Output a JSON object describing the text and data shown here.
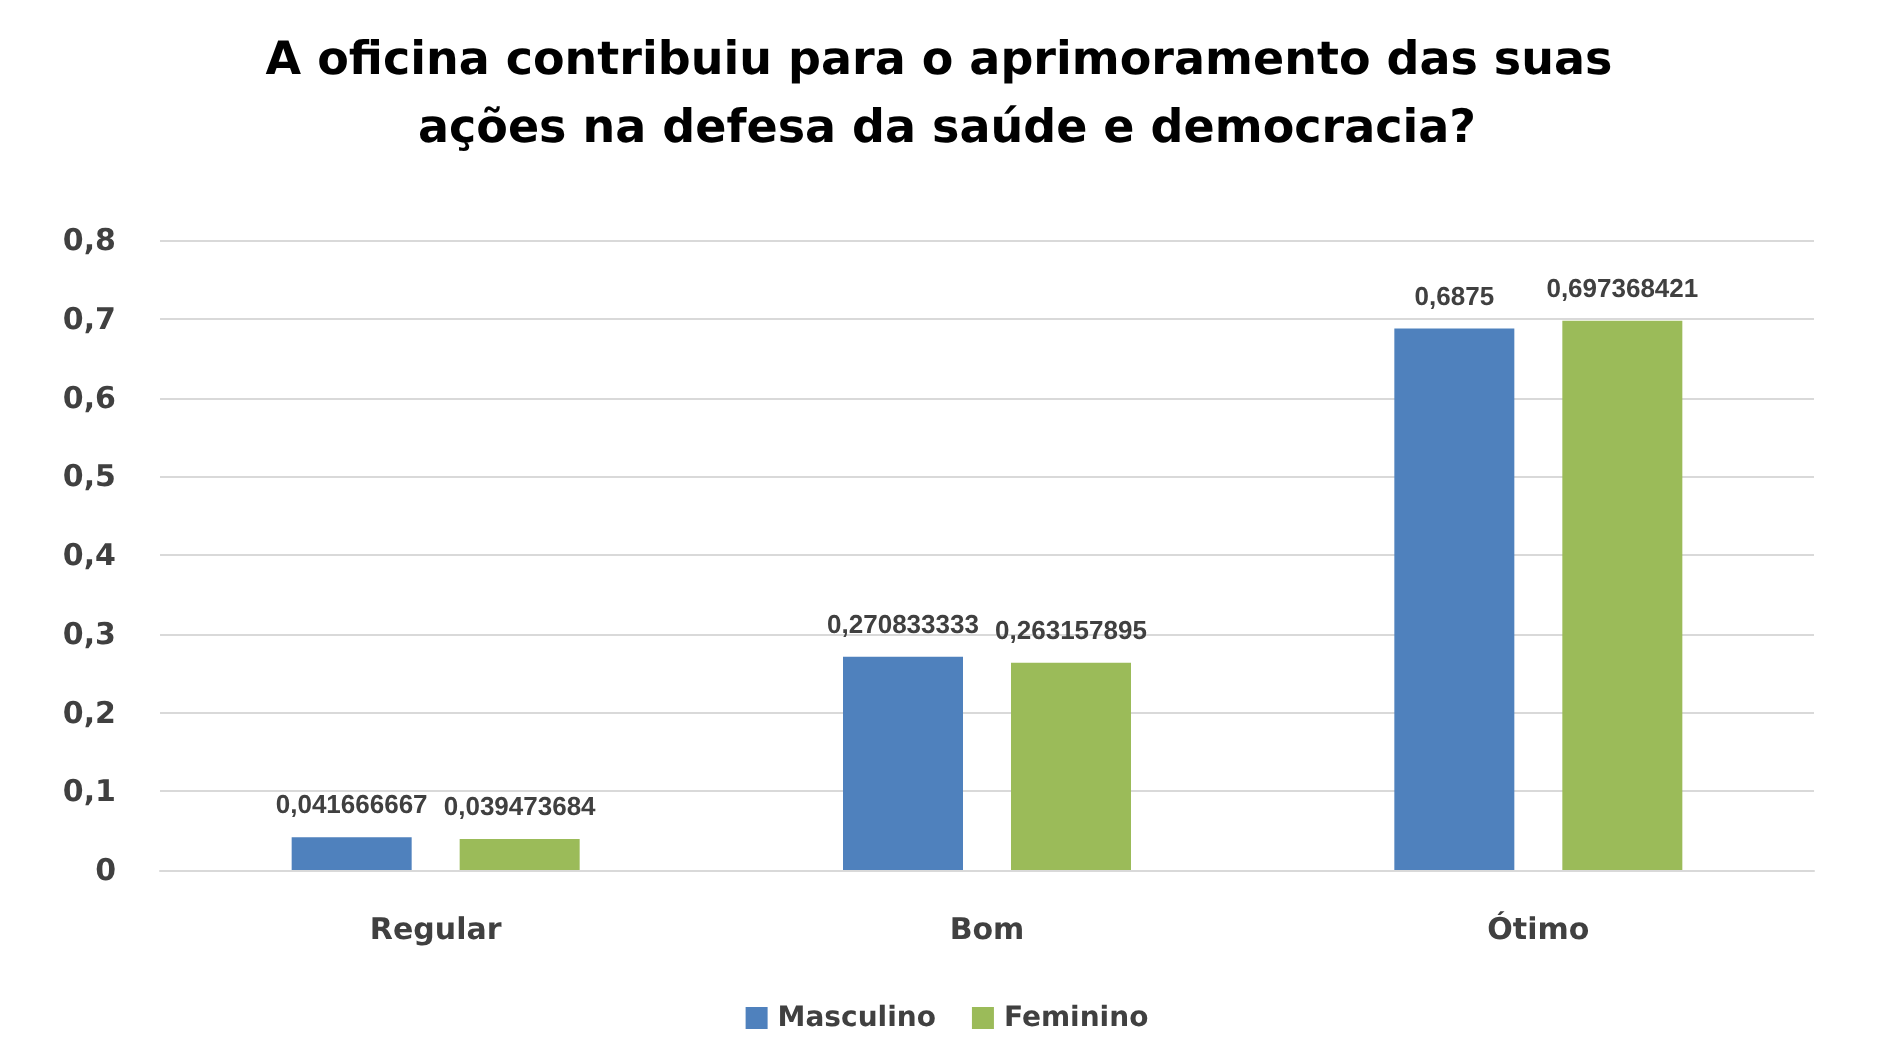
{
  "chart_data": {
    "type": "bar",
    "title": "A oficina contribuiu para o aprimoramento das suas ações na defesa da saúde e democracia?",
    "categories": [
      "Regular",
      "Bom",
      "Ótimo"
    ],
    "series": [
      {
        "name": "Masculino",
        "color": "#4f81bd",
        "values": [
          0.041666667,
          0.270833333,
          0.6875
        ],
        "value_labels": [
          "0,041666667",
          "0,270833333",
          "0,6875"
        ]
      },
      {
        "name": "Feminino",
        "color": "#9bbb59",
        "values": [
          0.039473684,
          0.263157895,
          0.697368421
        ],
        "value_labels": [
          "0,039473684",
          "0,263157895",
          "0,697368421"
        ]
      }
    ],
    "ylim": [
      0,
      0.8
    ],
    "yticks": [
      {
        "value": 0,
        "label": "0"
      },
      {
        "value": 0.1,
        "label": "0,1"
      },
      {
        "value": 0.2,
        "label": "0,2"
      },
      {
        "value": 0.3,
        "label": "0,3"
      },
      {
        "value": 0.4,
        "label": "0,4"
      },
      {
        "value": 0.5,
        "label": "0,5"
      },
      {
        "value": 0.6,
        "label": "0,6"
      },
      {
        "value": 0.7,
        "label": "0,7"
      },
      {
        "value": 0.8,
        "label": "0,8"
      }
    ],
    "grid": "y",
    "legend": "bottom"
  }
}
